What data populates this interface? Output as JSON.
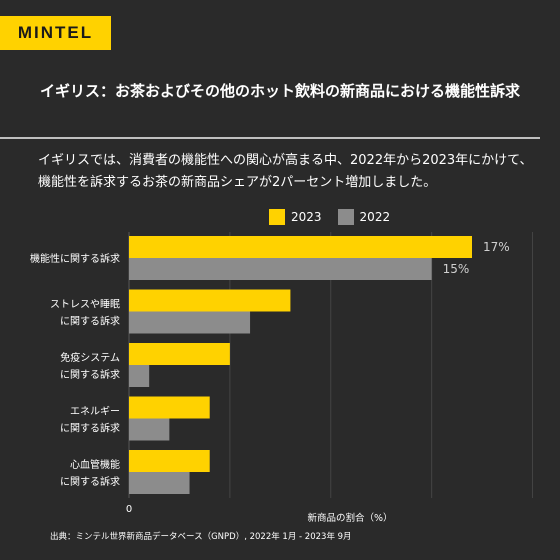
{
  "brand": {
    "logo_text": "MINTEL",
    "accent_color": "#ffd200"
  },
  "title": "イギリス：お茶およびその他のホット飲料の新商品における機能性訴求",
  "description": "イギリスでは、消費者の機能性への関心が高まる中、2022年から2023年にかけて、機能性を訴求するお茶の新商品シェアが2パーセント増加しました。",
  "source": "出典：ミンテル世界新商品データベース（GNPD）, 2022年 1月 - 2023年 9月",
  "chart_data": {
    "type": "bar",
    "orientation": "horizontal",
    "title": "",
    "xlabel": "新商品の割合（%）",
    "ylabel": "",
    "xlim": [
      0,
      20
    ],
    "x_tick_labels": [
      "0"
    ],
    "grid": true,
    "legend_position": "top",
    "categories": [
      "機能性に関する訴求",
      "ストレスや睡眠に関する訴求",
      "免疫システムに関する訴求",
      "エネルギーに関する訴求",
      "心血管機能に関する訴求"
    ],
    "category_lines": [
      [
        "機能性に関する訴求"
      ],
      [
        "ストレスや睡眠",
        "に関する訴求"
      ],
      [
        "免疫システム",
        "に関する訴求"
      ],
      [
        "エネルギー",
        "に関する訴求"
      ],
      [
        "心血管機能",
        "に関する訴求"
      ]
    ],
    "series": [
      {
        "name": "2023",
        "color": "#ffd200",
        "values": [
          17,
          8,
          5,
          4,
          4
        ],
        "labels": [
          "17%",
          "",
          "",
          "",
          ""
        ]
      },
      {
        "name": "2022",
        "color": "#8c8c8c",
        "values": [
          15,
          6,
          1,
          2,
          3
        ],
        "labels": [
          "15%",
          "",
          "",
          "",
          ""
        ]
      }
    ]
  }
}
